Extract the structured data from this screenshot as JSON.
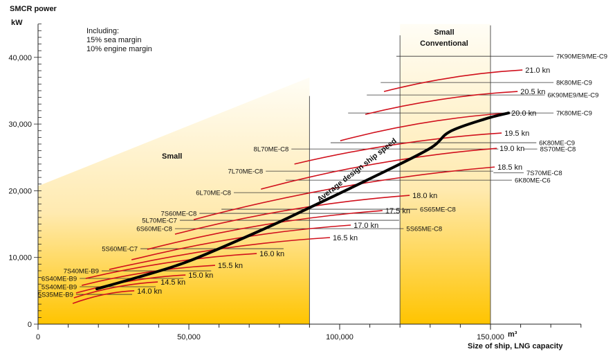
{
  "chart_data": {
    "type": "line",
    "title": "",
    "ylabel": "SMCR power",
    "yunit": "kW",
    "xlabel": "Size of ship, LNG capacity",
    "xunit": "m³",
    "note": [
      "Including:",
      "15% sea margin",
      "10% engine margin"
    ],
    "xlim": [
      0,
      180000
    ],
    "ylim": [
      0,
      45000
    ],
    "xticks": [
      0,
      50000,
      100000,
      150000
    ],
    "xtick_labels": [
      "0",
      "50,000",
      "100,000",
      "150,000"
    ],
    "yticks": [
      0,
      10000,
      20000,
      30000,
      40000
    ],
    "ytick_labels": [
      "0",
      "10,000",
      "20,000",
      "30,000",
      "40,000"
    ],
    "colors": {
      "speed": "#d0101c",
      "average": "#000000",
      "engine": "#555555",
      "fill_top": "#fffdf5",
      "fill_bottom": "#ffc400"
    },
    "regions": [
      {
        "label": "Small",
        "x": [
          0,
          90000
        ]
      },
      {
        "label": "Small Conventional",
        "x": [
          120000,
          150000
        ]
      }
    ],
    "average_curve": {
      "label": "Average design ship speed",
      "x": [
        19500,
        33300,
        50000,
        75200,
        89900,
        110000,
        129600,
        136500,
        148000,
        156000
      ],
      "y": [
        5290,
        7060,
        9450,
        14330,
        17440,
        21800,
        26260,
        28860,
        30730,
        31660
      ]
    },
    "speed_curves": [
      {
        "label": "14.0 kn",
        "x": [
          11500,
          31900
        ],
        "y": [
          3100,
          5000
        ]
      },
      {
        "label": "14.5 kn",
        "x": [
          11900,
          39700
        ],
        "y": [
          3950,
          6330
        ]
      },
      {
        "label": "15.0 kn",
        "x": [
          12600,
          48900
        ],
        "y": [
          4670,
          7370
        ]
      },
      {
        "label": "15.5 kn",
        "x": [
          14500,
          58700
        ],
        "y": [
          5810,
          8820
        ]
      },
      {
        "label": "16.0 kn",
        "x": [
          15800,
          72500
        ],
        "y": [
          6850,
          10590
        ]
      },
      {
        "label": "16.5 kn",
        "x": [
          23600,
          96800
        ],
        "y": [
          8200,
          12980
        ]
      },
      {
        "label": "17.0 kn",
        "x": [
          31000,
          103700
        ],
        "y": [
          9650,
          14850
        ]
      },
      {
        "label": "17.5 kn",
        "x": [
          36200,
          114200
        ],
        "y": [
          11210,
          17020
        ]
      },
      {
        "label": "18.0 kn",
        "x": [
          45400,
          123200
        ],
        "y": [
          13490,
          19310
        ]
      },
      {
        "label": "18.5 kn",
        "x": [
          51600,
          151400
        ],
        "y": [
          15670,
          23560
        ]
      },
      {
        "label": "19.0 kn",
        "x": [
          73900,
          152100
        ],
        "y": [
          20240,
          26360
        ]
      },
      {
        "label": "19.5 kn",
        "x": [
          85000,
          153700
        ],
        "y": [
          24000,
          28650
        ]
      },
      {
        "label": "20.0 kn",
        "x": [
          100200,
          156000
        ],
        "y": [
          27500,
          31660
        ]
      },
      {
        "label": "20.5 kn",
        "x": [
          108500,
          159000
        ],
        "y": [
          31450,
          34880
        ]
      },
      {
        "label": "21.0 kn",
        "x": [
          114700,
          160600
        ],
        "y": [
          34880,
          38100
        ]
      }
    ],
    "engines": [
      {
        "label": "7K90ME9/ME-C9",
        "power": 40170,
        "x": [
          118800,
          170900
        ],
        "side": "right"
      },
      {
        "label": "8K80ME-C9",
        "power": 36230,
        "x": [
          113600,
          170900
        ],
        "side": "right"
      },
      {
        "label": "6K90ME9/ME-C9",
        "power": 34360,
        "x": [
          109000,
          168000
        ],
        "side": "right"
      },
      {
        "label": "7K80ME-C9",
        "power": 31660,
        "x": [
          102800,
          170900
        ],
        "side": "right"
      },
      {
        "label": "6K80ME-C9",
        "power": 27200,
        "x": [
          97000,
          165200
        ],
        "side": "right"
      },
      {
        "label": "8L70ME-C8",
        "power": 26260,
        "x": [
          84000,
          152600
        ],
        "side": "left"
      },
      {
        "label": "8S70ME-C8",
        "power": 26260,
        "x": [
          161000,
          165500
        ],
        "side": "right"
      },
      {
        "label": "7L70ME-C8",
        "power": 22940,
        "x": [
          75500,
          150900
        ],
        "side": "left"
      },
      {
        "label": "7S70ME-C8",
        "power": 22700,
        "x": [
          151000,
          161000
        ],
        "side": "right"
      },
      {
        "label": "6K80ME-C6",
        "power": 21590,
        "x": [
          82100,
          157100
        ],
        "side": "right"
      },
      {
        "label": "6L70ME-C8",
        "power": 19720,
        "x": [
          64900,
          119700
        ],
        "side": "left"
      },
      {
        "label": "6S65ME-C8",
        "power": 17230,
        "x": [
          60800,
          125700
        ],
        "side": "right"
      },
      {
        "label": "7S60ME-C8",
        "power": 16610,
        "x": [
          53500,
          119700
        ],
        "side": "left"
      },
      {
        "label": "5L70ME-C7",
        "power": 15570,
        "x": [
          47000,
          119700
        ],
        "side": "left"
      },
      {
        "label": "6S60ME-C8",
        "power": 14320,
        "x": [
          45400,
          119700
        ],
        "side": "left"
      },
      {
        "label": "5S65ME-C8",
        "power": 14320,
        "x": [
          119700,
          121200
        ],
        "side": "right"
      },
      {
        "label": "5S60ME-C7",
        "power": 11310,
        "x": [
          33950,
          81400
        ],
        "side": "left"
      },
      {
        "label": "7S40ME-B9",
        "power": 7990,
        "x": [
          21100,
          57400
        ],
        "side": "left"
      },
      {
        "label": "6S40ME-B9",
        "power": 6850,
        "x": [
          13800,
          48200
        ],
        "side": "left"
      },
      {
        "label": "5S40ME-B9",
        "power": 5610,
        "x": [
          13800,
          39000
        ],
        "side": "left"
      },
      {
        "label": "5S35ME-B9",
        "power": 4460,
        "x": [
          12600,
          31200
        ],
        "side": "left"
      }
    ]
  }
}
